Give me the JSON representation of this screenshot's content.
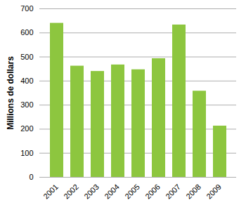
{
  "chart_data": {
    "type": "bar",
    "y_label": "Millions de dollars",
    "categories": [
      "2001",
      "2002",
      "2003",
      "2004",
      "2005",
      "2006",
      "2007",
      "2008",
      "2009"
    ],
    "values": [
      640,
      462,
      440,
      467,
      447,
      493,
      633,
      358,
      213
    ],
    "color": "#8dc63f",
    "ylim": [
      0,
      700
    ],
    "yticks": [
      0,
      100,
      200,
      300,
      400,
      500,
      600,
      700
    ],
    "grid": true
  }
}
